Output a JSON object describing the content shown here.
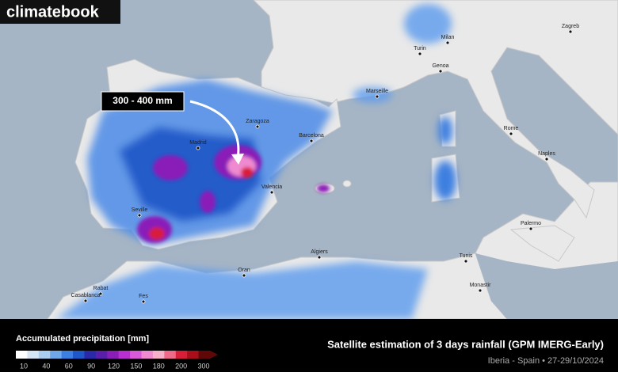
{
  "logo": "climatebook",
  "annotation": "300 - 400 mm",
  "cities": [
    "Madrid",
    "Zaragoza",
    "Barcelona",
    "Valencia",
    "Seville",
    "Marseille",
    "Turin",
    "Milan",
    "Genoa",
    "Zagreb",
    "Rome",
    "Naples",
    "Palermo",
    "Tunis",
    "Monastir",
    "Algiers",
    "Oran",
    "Rabat",
    "Casablanca",
    "Fes"
  ],
  "legend": {
    "title": "Accumulated precipitation [mm]",
    "ticks": [
      10,
      40,
      60,
      90,
      120,
      150,
      180,
      200,
      300
    ],
    "colors": [
      "#ffffff",
      "#d6e6f7",
      "#a9cdf0",
      "#6fa8e8",
      "#3d7fe0",
      "#1f56c8",
      "#2a2aa8",
      "#5a1fa8",
      "#8a1fb8",
      "#b92fd0",
      "#d85ad8",
      "#f08ad0",
      "#f6b0c8",
      "#ef6a8a",
      "#d81f3a",
      "#a80f1a",
      "#600808"
    ]
  },
  "title": "Satellite estimation of 3 days rainfall (GPM IMERG-Early)",
  "subtitle": "Iberia - Spain • 27-29/10/2024"
}
